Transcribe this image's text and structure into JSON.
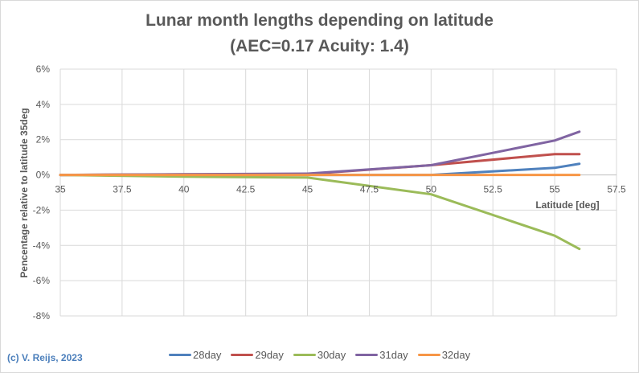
{
  "chart_data": {
    "type": "line",
    "title": [
      "Lunar month lengths depending on latitude",
      "(AEC=0.17 Acuity: 1.4)"
    ],
    "xlabel": "Latitude [deg]",
    "ylabel": "Pencentage relative to latitude 35deg",
    "xlim": [
      35,
      57.5
    ],
    "ylim": [
      -8,
      6
    ],
    "xticks": [
      "35",
      "37.5",
      "40",
      "42.5",
      "45",
      "47.5",
      "50",
      "52.5",
      "55",
      "57.5"
    ],
    "yticks": [
      "6%",
      "4%",
      "2%",
      "0%",
      "-2%",
      "-4%",
      "-6%",
      "-8%"
    ],
    "grid": true,
    "legend_position": "bottom",
    "x": [
      35,
      40,
      45,
      50,
      55,
      56
    ],
    "series": [
      {
        "name": "28day",
        "color": "#4f81bd",
        "values": [
          0,
          0,
          0,
          0,
          0.4,
          0.63
        ]
      },
      {
        "name": "29day",
        "color": "#c0504d",
        "values": [
          0,
          0.03,
          0.05,
          0.55,
          1.18,
          1.18
        ]
      },
      {
        "name": "30day",
        "color": "#9bbb59",
        "values": [
          0,
          -0.1,
          -0.15,
          -1.1,
          -3.45,
          -4.2
        ]
      },
      {
        "name": "31day",
        "color": "#8064a2",
        "values": [
          0,
          0.04,
          0.07,
          0.55,
          1.95,
          2.45
        ]
      },
      {
        "name": "32day",
        "color": "#f79646",
        "values": [
          0,
          0,
          0,
          0,
          0,
          0
        ]
      }
    ]
  },
  "credit": "(c) V. Reijs, 2023"
}
